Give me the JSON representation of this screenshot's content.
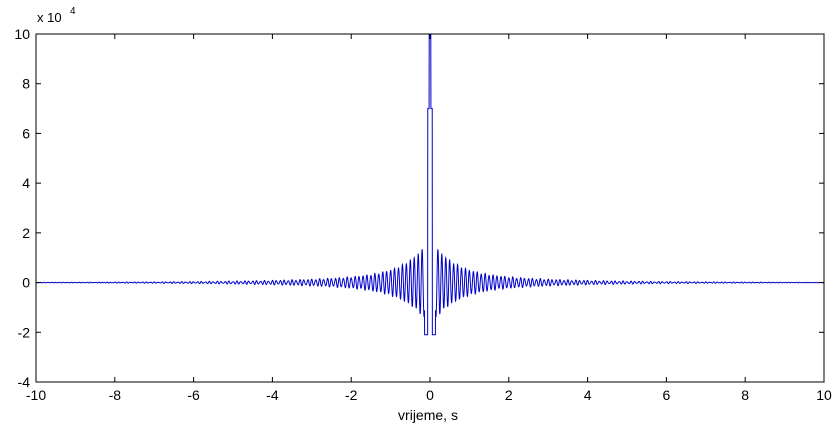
{
  "chart_data": {
    "type": "line",
    "title": "",
    "xlabel": "vrijeme, s",
    "ylabel": "",
    "xlim": [
      -10,
      10
    ],
    "ylim": [
      -4,
      10
    ],
    "xticks": [
      "-10",
      "-8",
      "-6",
      "-4",
      "-2",
      "0",
      "2",
      "4",
      "6",
      "8",
      "10"
    ],
    "yticks": [
      "-4",
      "-2",
      "0",
      "2",
      "4",
      "6",
      "8",
      "10"
    ],
    "y_exponent_label": "x 10",
    "y_exponent_power": "4",
    "grid": false,
    "series": [
      {
        "color": "#0000cc",
        "signal": {
          "peak": 10,
          "side_peak": 7,
          "main_lobe_min": -2.1,
          "near_lobe_max": 1.3,
          "oscillation_period": 0.1,
          "x_range": [
            -10,
            10
          ]
        }
      }
    ]
  },
  "colors": {
    "line": "#0000cc",
    "axes": "#000000",
    "background": "#ffffff"
  }
}
